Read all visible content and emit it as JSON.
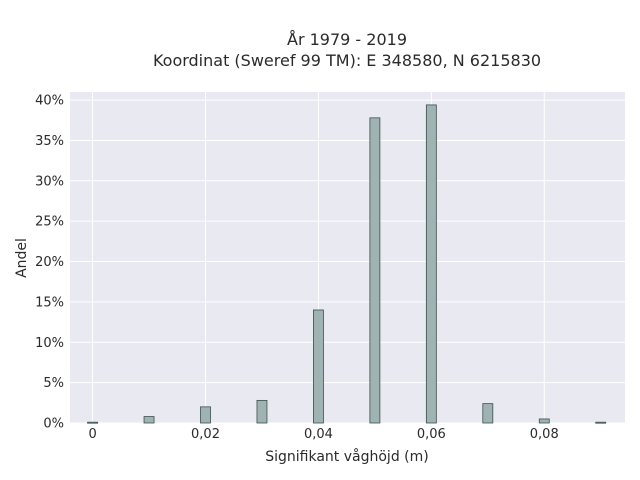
{
  "chart_data": {
    "type": "bar",
    "title_line1": "År 1979 - 2019",
    "title_line2": "Koordinat (Sweref 99 TM): E 348580, N 6215830",
    "xlabel": "Signifikant våghöjd (m)",
    "ylabel": "Andel",
    "x_ticks": [
      0,
      0.02,
      0.04,
      0.06,
      0.08
    ],
    "x_tick_labels": [
      "0",
      "0,02",
      "0,04",
      "0,06",
      "0,08"
    ],
    "y_ticks": [
      0,
      5,
      10,
      15,
      20,
      25,
      30,
      35,
      40
    ],
    "y_tick_labels": [
      "0%",
      "5%",
      "10%",
      "15%",
      "20%",
      "25%",
      "30%",
      "35%",
      "40%"
    ],
    "xlim": [
      -0.004,
      0.0943
    ],
    "ylim": [
      0,
      41
    ],
    "x": [
      0.0,
      0.01,
      0.02,
      0.03,
      0.04,
      0.05,
      0.06,
      0.07,
      0.08,
      0.09
    ],
    "values": [
      0.1,
      0.8,
      2.0,
      2.8,
      14.0,
      37.8,
      39.4,
      2.4,
      0.5,
      0.1
    ],
    "value_unit": "%",
    "colors": {
      "plot_bg": "#e8e9f1",
      "bar_fill": "#9fb3b3",
      "bar_edge": "#3c4f4f"
    },
    "grid": true,
    "legend": "none"
  }
}
